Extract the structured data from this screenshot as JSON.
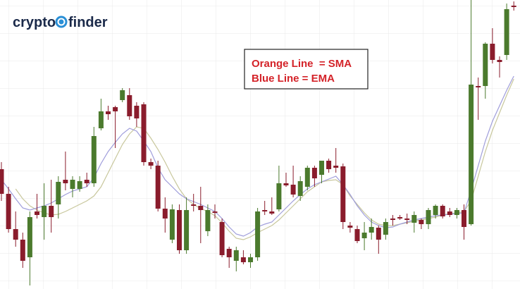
{
  "logo": {
    "left": "crypto",
    "right": "finder"
  },
  "chart_data": {
    "type": "candlestick",
    "annotations": [
      "Orange Line  = SMA",
      "Blue Line = EMA"
    ],
    "ylim": [
      0,
      410
    ],
    "up_color": "#4b7a2d",
    "down_color": "#8a1c2c",
    "open": [
      170,
      135,
      85,
      70,
      45,
      110,
      102,
      118,
      120,
      155,
      142,
      142,
      155,
      150,
      228,
      252,
      258,
      268,
      275,
      260,
      262,
      180,
      175,
      114,
      70,
      112,
      55,
      120,
      118,
      82,
      110,
      95,
      57,
      40,
      45,
      38,
      45,
      112,
      110,
      113,
      150,
      148,
      132,
      145,
      172,
      162,
      182,
      175,
      174,
      90,
      85,
      72,
      80,
      87,
      77,
      100,
      102,
      100,
      94,
      98,
      92,
      105,
      118,
      110,
      105,
      112,
      92,
      288,
      288,
      348,
      325,
      332,
      402
    ],
    "high": [
      180,
      145,
      110,
      80,
      110,
      135,
      150,
      155,
      160,
      195,
      160,
      160,
      165,
      230,
      270,
      260,
      260,
      285,
      285,
      265,
      265,
      185,
      182,
      130,
      120,
      120,
      130,
      135,
      145,
      120,
      120,
      100,
      60,
      60,
      55,
      50,
      115,
      125,
      130,
      175,
      165,
      175,
      160,
      175,
      175,
      182,
      185,
      200,
      178,
      95,
      90,
      95,
      100,
      90,
      100,
      105,
      105,
      107,
      110,
      100,
      115,
      120,
      120,
      115,
      115,
      120,
      410,
      300,
      350,
      370,
      330,
      405,
      408
    ],
    "low": [
      125,
      80,
      60,
      30,
      5,
      100,
      70,
      80,
      100,
      140,
      130,
      138,
      145,
      145,
      225,
      240,
      200,
      265,
      240,
      230,
      175,
      170,
      110,
      80,
      65,
      50,
      50,
      110,
      65,
      75,
      100,
      45,
      30,
      25,
      35,
      30,
      40,
      105,
      105,
      110,
      145,
      130,
      125,
      140,
      145,
      150,
      165,
      165,
      85,
      80,
      65,
      55,
      70,
      50,
      70,
      90,
      98,
      92,
      80,
      85,
      85,
      100,
      100,
      102,
      100,
      70,
      90,
      240,
      270,
      320,
      300,
      325,
      395
    ],
    "close": [
      135,
      85,
      70,
      40,
      102,
      105,
      118,
      102,
      152,
      150,
      155,
      153,
      150,
      217,
      252,
      248,
      252,
      282,
      245,
      242,
      180,
      175,
      114,
      100,
      113,
      55,
      112,
      118,
      112,
      112,
      108,
      48,
      45,
      55,
      38,
      45,
      110,
      110,
      107,
      150,
      147,
      134,
      153,
      172,
      157,
      182,
      170,
      172,
      95,
      87,
      68,
      80,
      88,
      70,
      95,
      98,
      100,
      98,
      105,
      92,
      112,
      118,
      103,
      105,
      112,
      88,
      290,
      286,
      348,
      325,
      322,
      397,
      400
    ],
    "lines": [
      {
        "color": "#c8c79c",
        "values": [
          null,
          null,
          142,
          128,
          118,
          112,
          108,
          105,
          106,
          110,
          115,
          120,
          125,
          132,
          145,
          165,
          185,
          205,
          220,
          230,
          228,
          214,
          198,
          180,
          160,
          142,
          128,
          120,
          114,
          110,
          104,
          94,
          82,
          72,
          70,
          74,
          80,
          85,
          90,
          98,
          108,
          118,
          128,
          138,
          145,
          152,
          154,
          155,
          148,
          132,
          120,
          108,
          98,
          92,
          90,
          90,
          92,
          94,
          96,
          98,
          100,
          102,
          105,
          107,
          108,
          110,
          125,
          160,
          195,
          225,
          250,
          275,
          298
        ]
      },
      {
        "color": "#9f9ddb",
        "values": [
          155,
          142,
          128,
          115,
          112,
          115,
          118,
          122,
          128,
          134,
          139,
          142,
          145,
          158,
          178,
          195,
          208,
          220,
          228,
          224,
          210,
          195,
          172,
          155,
          145,
          135,
          128,
          124,
          120,
          115,
          110,
          100,
          88,
          78,
          75,
          80,
          88,
          92,
          95,
          105,
          115,
          125,
          134,
          142,
          148,
          152,
          156,
          160,
          148,
          134,
          118,
          105,
          95,
          90,
          87,
          88,
          92,
          95,
          98,
          100,
          102,
          104,
          105,
          106,
          107,
          108,
          140,
          175,
          210,
          238,
          260,
          282,
          302
        ]
      }
    ]
  }
}
